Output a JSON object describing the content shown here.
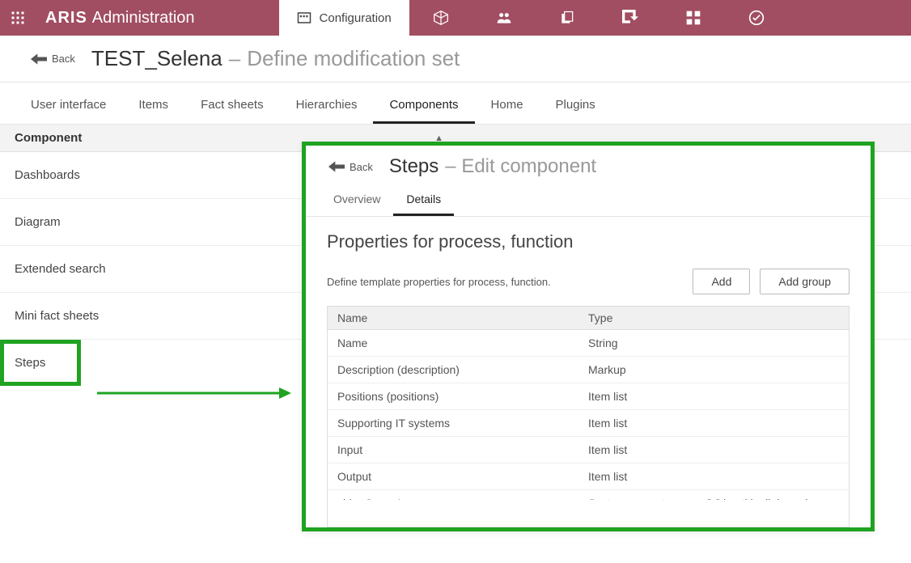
{
  "header": {
    "brand_strong": "ARIS",
    "brand_light": "Administration",
    "active_tab_label": "Configuration"
  },
  "breadcrumb": {
    "back_label": "Back",
    "title": "TEST_Selena",
    "separator": "–",
    "subtitle": "Define modification set"
  },
  "htabs": [
    {
      "label": "User interface",
      "active": false
    },
    {
      "label": "Items",
      "active": false
    },
    {
      "label": "Fact sheets",
      "active": false
    },
    {
      "label": "Hierarchies",
      "active": false
    },
    {
      "label": "Components",
      "active": true
    },
    {
      "label": "Home",
      "active": false
    },
    {
      "label": "Plugins",
      "active": false
    }
  ],
  "section_header": "Component",
  "components": [
    {
      "label": "Dashboards"
    },
    {
      "label": "Diagram"
    },
    {
      "label": "Extended search"
    },
    {
      "label": "Mini fact sheets"
    },
    {
      "label": "Steps",
      "highlighted": true
    }
  ],
  "panel": {
    "back_label": "Back",
    "title": "Steps",
    "separator": "–",
    "subtitle": "Edit component",
    "tabs": [
      {
        "label": "Overview",
        "active": false
      },
      {
        "label": "Details",
        "active": true
      }
    ],
    "heading": "Properties for process, function",
    "description": "Define template properties for process, function.",
    "add_label": "Add",
    "add_group_label": "Add group",
    "columns": {
      "name": "Name",
      "type": "Type"
    },
    "rows": [
      {
        "name": "Name",
        "type": "String"
      },
      {
        "name": "Description (description)",
        "type": "Markup"
      },
      {
        "name": "Positions (positions)",
        "type": "Item list"
      },
      {
        "name": "Supporting IT systems",
        "type": "Item list"
      },
      {
        "name": "Input",
        "type": "Item list"
      },
      {
        "name": "Output",
        "type": "Item list"
      },
      {
        "name": "videoGroup1",
        "type": "System property group (Video title, link, and"
      }
    ]
  },
  "colors": {
    "brand_bg": "#a14d62",
    "highlight": "#1fa321"
  }
}
